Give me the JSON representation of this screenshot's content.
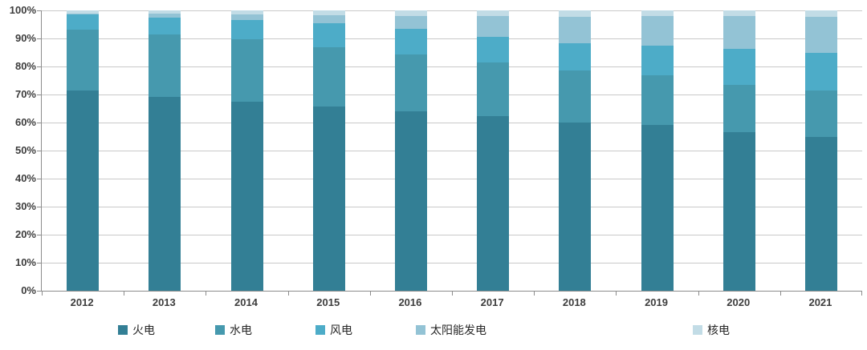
{
  "chart_data": {
    "type": "bar",
    "stacked": true,
    "percent_stacked": true,
    "title": "",
    "xlabel": "",
    "ylabel": "",
    "grid": true,
    "legend_position": "bottom",
    "categories": [
      "2012",
      "2013",
      "2014",
      "2015",
      "2016",
      "2017",
      "2018",
      "2019",
      "2020",
      "2021"
    ],
    "series": [
      {
        "name": "火电",
        "key": "thermal",
        "color": "#337F95",
        "values": [
          71.5,
          69.2,
          67.4,
          65.8,
          64.0,
          62.2,
          60.0,
          59.2,
          56.5,
          54.8
        ]
      },
      {
        "name": "水电",
        "key": "hydro",
        "color": "#4699AE",
        "values": [
          21.7,
          22.3,
          22.2,
          21.2,
          20.2,
          19.2,
          18.5,
          17.8,
          16.9,
          16.5
        ]
      },
      {
        "name": "风电",
        "key": "wind",
        "color": "#4DACC8",
        "values": [
          5.3,
          6.0,
          7.0,
          8.5,
          9.2,
          9.1,
          9.9,
          10.3,
          12.9,
          13.7
        ]
      },
      {
        "name": "太阳能发电",
        "key": "solar",
        "color": "#93C3D5",
        "values": [
          0.3,
          1.3,
          1.9,
          2.9,
          4.6,
          7.5,
          9.3,
          10.6,
          11.6,
          12.7
        ]
      },
      {
        "name": "核电",
        "key": "nuclear",
        "color": "#C2DCE6",
        "values": [
          1.2,
          1.2,
          1.5,
          1.6,
          2.0,
          2.0,
          2.3,
          2.1,
          2.1,
          2.3
        ]
      }
    ],
    "y_axis": {
      "min": 0,
      "max": 100,
      "tick_step": 10,
      "tick_labels": [
        "0%",
        "10%",
        "20%",
        "30%",
        "40%",
        "50%",
        "60%",
        "70%",
        "80%",
        "90%",
        "100%"
      ]
    },
    "legend": [
      "火电",
      "水电",
      "风电",
      "太阳能发电",
      "核电"
    ]
  },
  "style": {
    "gridline_color": "#C9C9C9",
    "axis_color": "#8C8C8C",
    "label_color": "#3D3D3D"
  }
}
